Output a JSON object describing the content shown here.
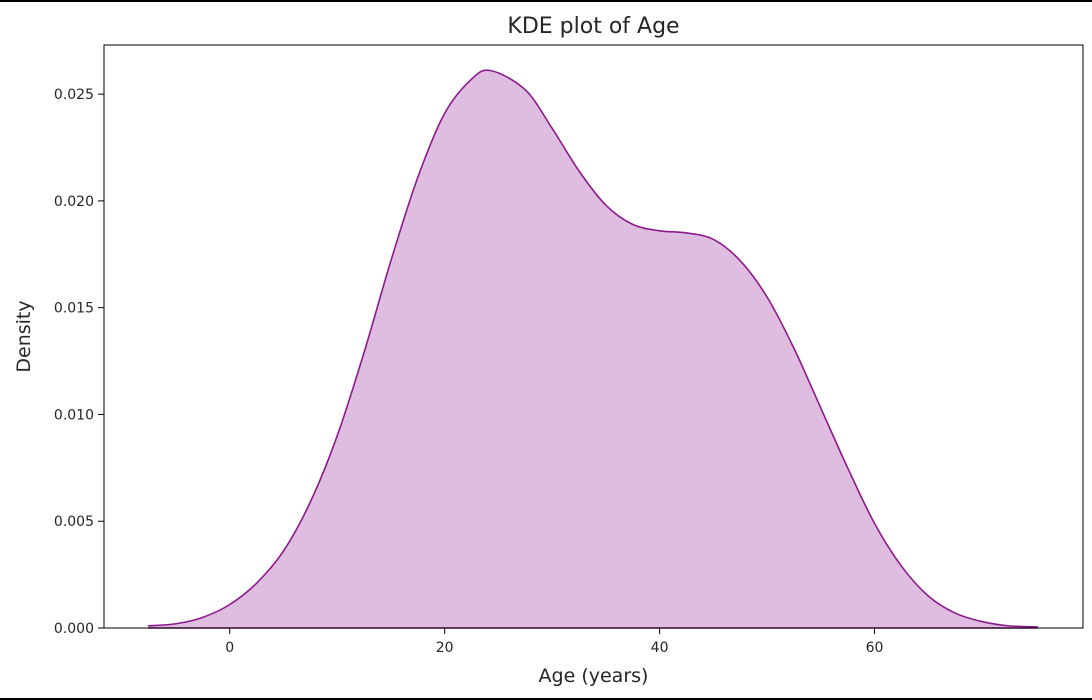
{
  "chart_data": {
    "type": "area",
    "title": "KDE plot of Age",
    "xlabel": "Age (years)",
    "ylabel": "Density",
    "xlim": [
      -11.7,
      79.4
    ],
    "ylim": [
      0,
      0.0273
    ],
    "xticks": [
      0,
      20,
      40,
      60
    ],
    "yticks": [
      0.0,
      0.005,
      0.01,
      0.015,
      0.02,
      0.025
    ],
    "ytick_labels": [
      "0.000",
      "0.005",
      "0.010",
      "0.015",
      "0.020",
      "0.025"
    ],
    "xtick_labels": [
      "0",
      "20",
      "40",
      "60"
    ],
    "grid": false,
    "legend": null,
    "line_color": "#8b1a8b",
    "fill_color": "#dfbde0",
    "series": [
      {
        "x": [
          -7.6,
          -5,
          -2.5,
          0,
          2.5,
          5,
          7.5,
          10,
          12.5,
          15,
          17.5,
          20,
          22.5,
          24.3,
          27.5,
          30,
          32.5,
          35,
          37.5,
          40,
          42.5,
          45,
          47.5,
          50,
          52.5,
          55,
          57.5,
          60,
          62.5,
          65,
          67.5,
          70,
          72.5,
          75.2
        ],
        "y": [
          0.0001,
          0.0002,
          0.0005,
          0.0011,
          0.0021,
          0.0036,
          0.0059,
          0.009,
          0.0129,
          0.0172,
          0.0211,
          0.0241,
          0.0257,
          0.0261,
          0.0252,
          0.0234,
          0.0214,
          0.0198,
          0.0189,
          0.0186,
          0.0185,
          0.0182,
          0.0172,
          0.0155,
          0.0131,
          0.0103,
          0.0075,
          0.0049,
          0.0029,
          0.0015,
          0.0007,
          0.0003,
          0.0001,
          5e-05
        ]
      }
    ]
  }
}
